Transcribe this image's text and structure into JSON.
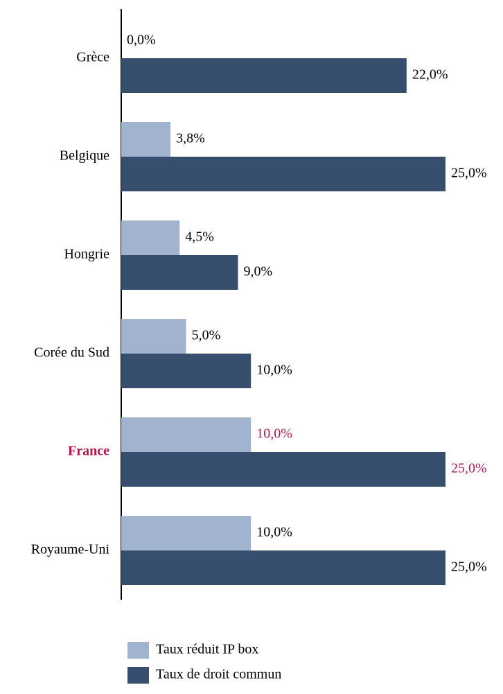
{
  "chart_data": {
    "type": "bar",
    "orientation": "horizontal",
    "categories": [
      "Grèce",
      "Belgique",
      "Hongrie",
      "Corée du Sud",
      "France",
      "Royaume-Uni"
    ],
    "label_colors": [
      "#000000",
      "#000000",
      "#000000",
      "#000000",
      "#b5174b",
      "#000000"
    ],
    "series": [
      {
        "name": "Taux réduit IP box",
        "color": "#a2b3d0",
        "values": [
          0,
          3.8,
          4.5,
          5,
          10,
          10
        ],
        "value_labels": [
          "0,0%",
          "3,8%",
          "4,5%",
          "5,0%",
          "10,0%",
          "10,0%"
        ]
      },
      {
        "name": "Taux de droit commun",
        "color": "#384e6e",
        "values": [
          22,
          25,
          9,
          10,
          25,
          25
        ],
        "value_labels": [
          "22,0%",
          "25,0%",
          "9,0%",
          "10,0%",
          "25,0%",
          "25,0%"
        ]
      }
    ]
  }
}
